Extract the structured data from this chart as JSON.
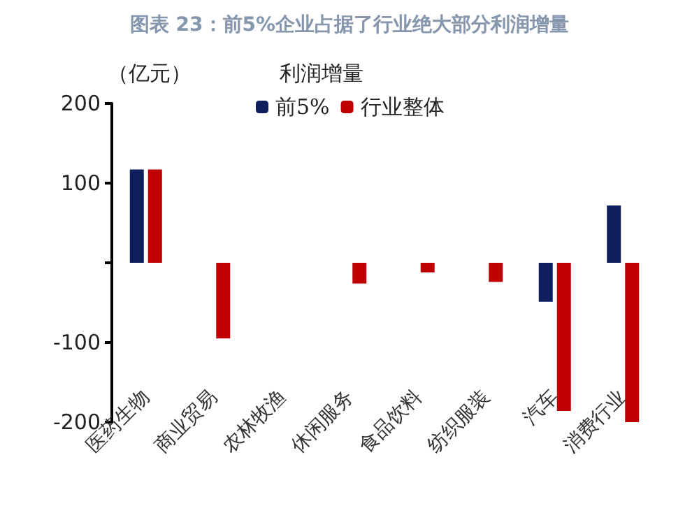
{
  "chart_data": {
    "type": "bar",
    "title": "图表 23：前5%企业占据了行业绝大部分利润增量",
    "ylabel": "（亿元）",
    "legend_title": "利润增量",
    "categories": [
      "医药生物",
      "商业贸易",
      "农林牧渔",
      "休闲服务",
      "食品饮料",
      "纺织服装",
      "汽车",
      "消费行业"
    ],
    "series": [
      {
        "name": "前5%",
        "color": "#0f1f5e",
        "values": [
          117,
          null,
          null,
          null,
          null,
          null,
          -49,
          72
        ]
      },
      {
        "name": "行业整体",
        "color": "#c00000",
        "values": [
          117,
          -95,
          null,
          -26,
          -12,
          -24,
          -186,
          -200
        ]
      }
    ],
    "ylim": [
      -200,
      200
    ],
    "yticks": [
      -200,
      -100,
      {
        "value": 0,
        "label": null
      },
      100,
      200
    ],
    "grid": false,
    "legend": "top"
  }
}
